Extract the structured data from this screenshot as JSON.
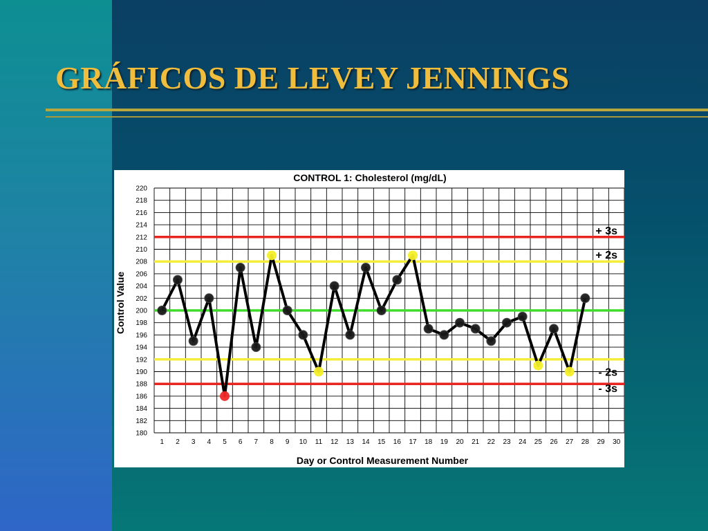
{
  "slide": {
    "title": "GRÁFICOS DE LEVEY JENNINGS"
  },
  "chart_data": {
    "type": "line",
    "title": "CONTROL 1: Cholesterol (mg/dL)",
    "xlabel": "Day or Control Measurement Number",
    "ylabel": "Control Value",
    "xlim": [
      1,
      30
    ],
    "ylim": [
      180,
      220
    ],
    "x_ticks": [
      1,
      2,
      3,
      4,
      5,
      6,
      7,
      8,
      9,
      10,
      11,
      12,
      13,
      14,
      15,
      16,
      17,
      18,
      19,
      20,
      21,
      22,
      23,
      24,
      25,
      26,
      27,
      28,
      29,
      30
    ],
    "y_ticks": [
      180,
      182,
      184,
      186,
      188,
      190,
      192,
      194,
      196,
      198,
      200,
      202,
      204,
      206,
      208,
      210,
      212,
      214,
      216,
      218,
      220
    ],
    "grid": true,
    "reference_lines": [
      {
        "value": 212,
        "label": "+ 3s",
        "color": "#e8251f"
      },
      {
        "value": 208,
        "label": "+ 2s",
        "color": "#f4ee3a"
      },
      {
        "value": 200,
        "label": "",
        "color": "#3fdc2c"
      },
      {
        "value": 192,
        "label": "",
        "color": "#f4ee3a"
      },
      {
        "value": 188,
        "label": "- 3s",
        "color": "#e8251f"
      }
    ],
    "extra_labels": [
      {
        "label": "- 2s",
        "value": 190
      }
    ],
    "series": [
      {
        "x": [
          1,
          2,
          3,
          4,
          5,
          6,
          7,
          8,
          9,
          10,
          11,
          12,
          13,
          14,
          15,
          16,
          17,
          18,
          19,
          20,
          21,
          22,
          23,
          24,
          25,
          26,
          27,
          28
        ],
        "values": [
          200,
          205,
          195,
          202,
          186,
          207,
          194,
          209,
          200,
          196,
          190,
          204,
          196,
          207,
          200,
          205,
          209,
          197,
          196,
          198,
          197,
          195,
          198,
          199,
          191,
          197,
          190,
          202
        ],
        "point_status": [
          "in",
          "in",
          "in",
          "in",
          "reject",
          "in",
          "in",
          "warning",
          "in",
          "in",
          "warning",
          "in",
          "in",
          "in",
          "in",
          "in",
          "warning",
          "in",
          "in",
          "in",
          "in",
          "in",
          "in",
          "in",
          "warning",
          "in",
          "warning",
          "in"
        ],
        "line_color": "#000000"
      }
    ],
    "status_colors": {
      "in": "#1a1a1a",
      "warning": "#f6f02a",
      "reject": "#f22a2a"
    }
  }
}
